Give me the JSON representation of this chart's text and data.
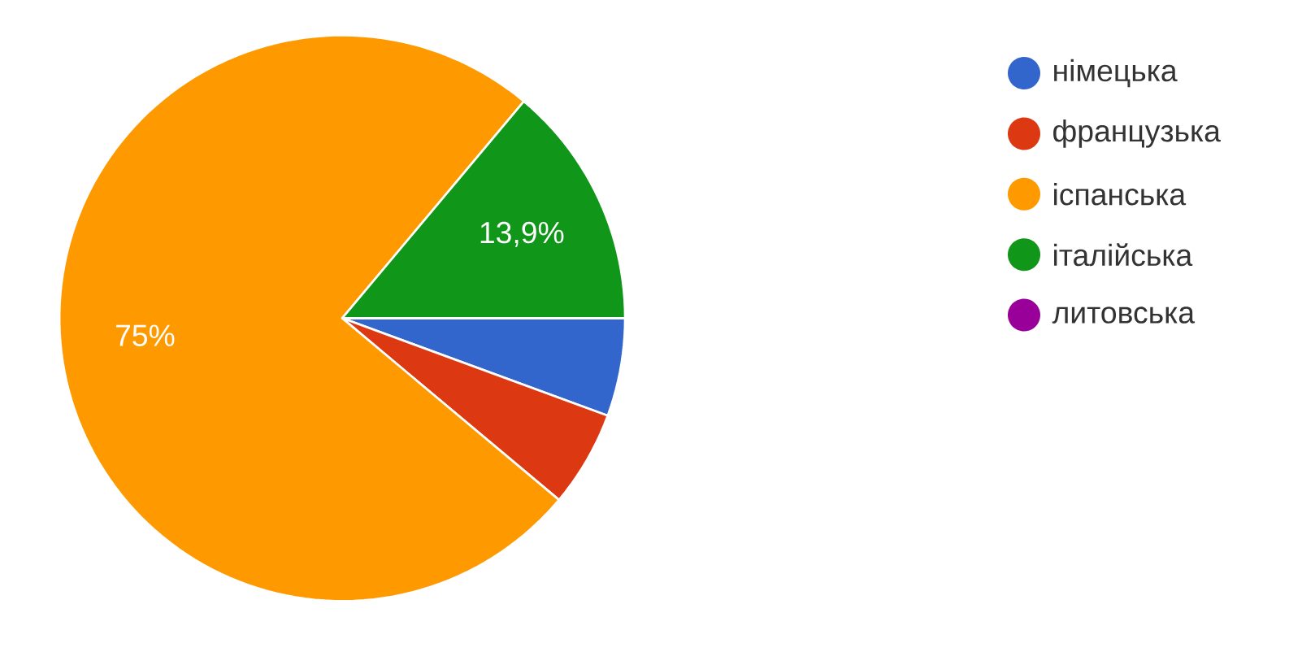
{
  "chart_data": {
    "type": "pie",
    "categories": [
      "німецька",
      "французька",
      "іспанська",
      "італійська",
      "литовська"
    ],
    "values": [
      5.6,
      5.5,
      75,
      13.9,
      0
    ],
    "colors": [
      "#3366cc",
      "#dc3912",
      "#ff9900",
      "#109618",
      "#990099"
    ],
    "value_labels": [
      null,
      null,
      "75%",
      "13,9%",
      null
    ],
    "legend": "right"
  }
}
